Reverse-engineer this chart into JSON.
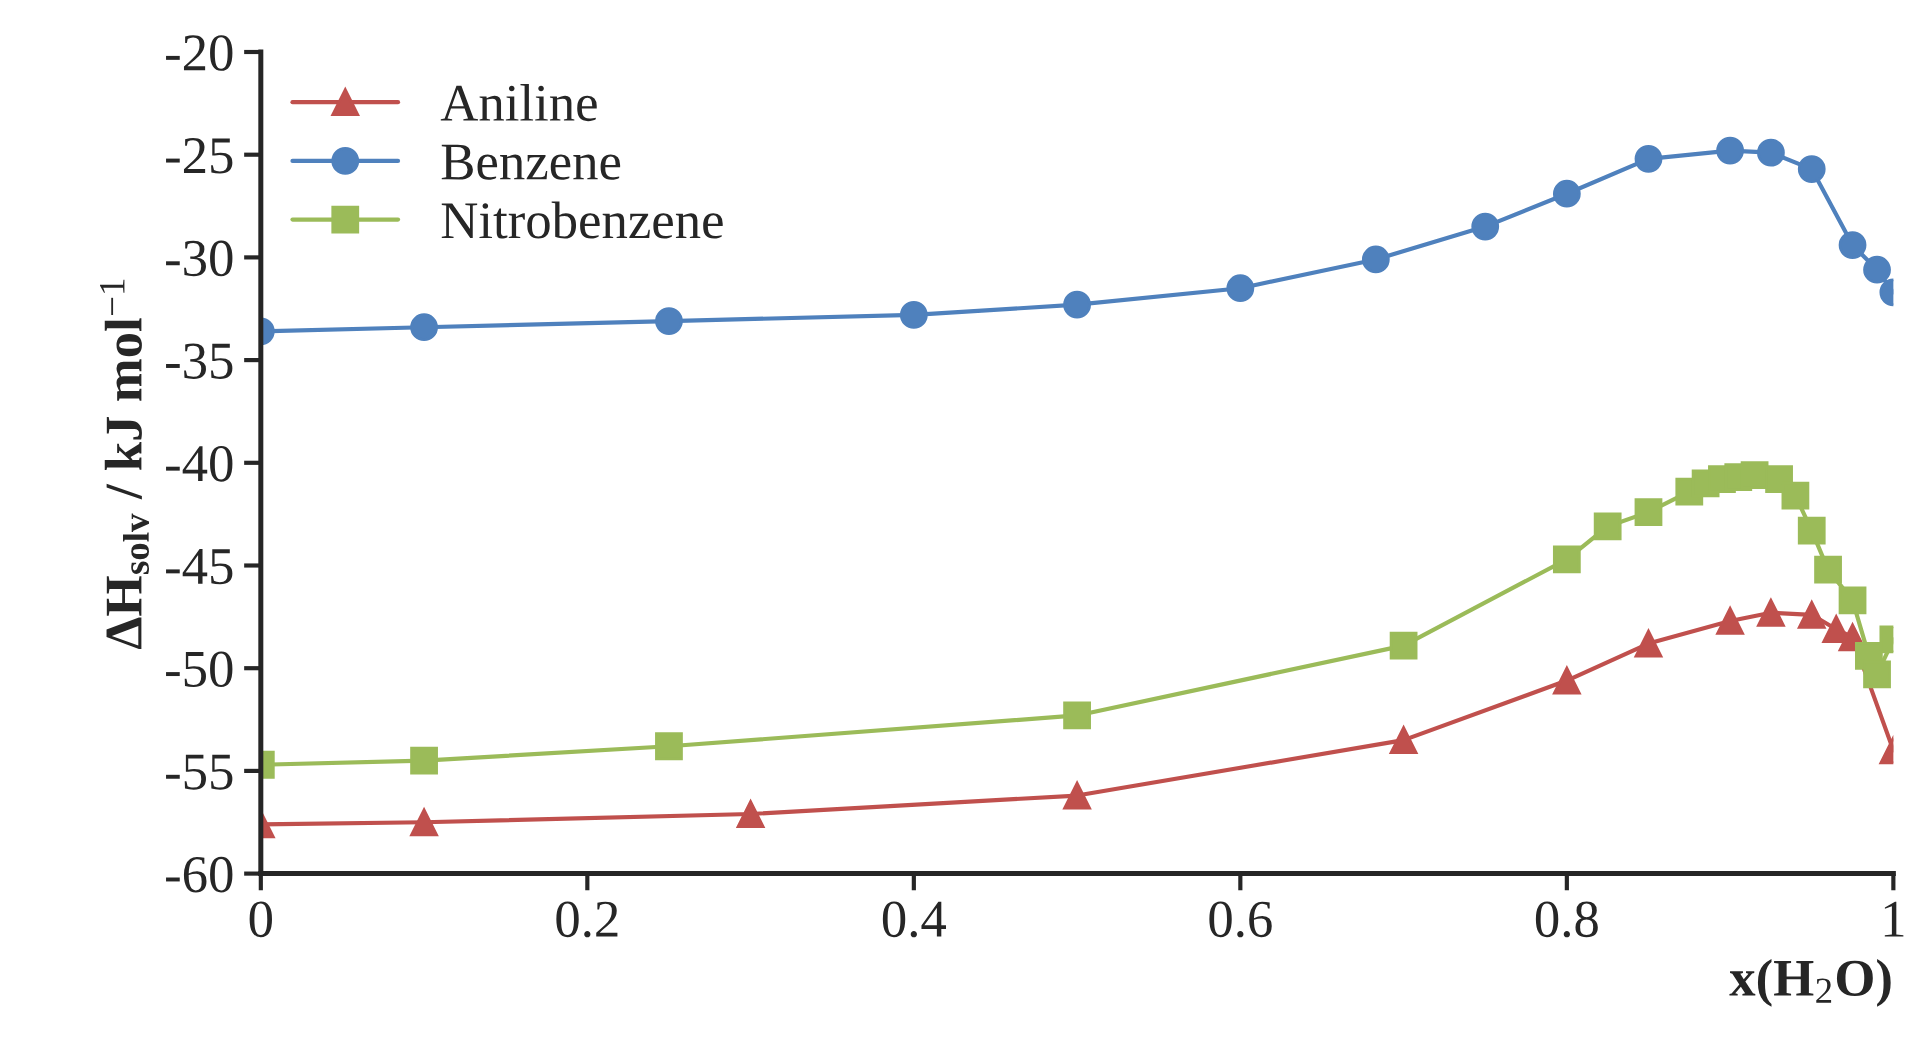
{
  "chart_data": {
    "type": "line",
    "xlabel": "x(H$_{2}$O)",
    "ylabel": "ΔH$_{solv}$ / kJ mol$^{−1}$",
    "xlim": [
      0,
      1
    ],
    "xticks": [
      0,
      0.2,
      0.4,
      0.6,
      0.8,
      1
    ],
    "ylim": [
      -60,
      -20
    ],
    "yticks": [
      -60,
      -55,
      -50,
      -45,
      -40,
      -35,
      -30,
      -25,
      -20
    ],
    "grid": false,
    "legend": "top left",
    "series": [
      {
        "name": "Aniline",
        "color": "#c0504d",
        "marker": "triangle",
        "x": [
          0,
          0.1,
          0.3,
          0.5,
          0.7,
          0.8,
          0.85,
          0.9,
          0.925,
          0.95,
          0.965,
          0.975,
          1.0
        ],
        "values": [
          -57.6,
          -57.5,
          -57.1,
          -56.2,
          -53.5,
          -50.6,
          -48.8,
          -47.7,
          -47.3,
          -47.4,
          -48.1,
          -48.5,
          -54.0
        ]
      },
      {
        "name": "Benzene",
        "color": "#4f81bd",
        "marker": "circle",
        "x": [
          0,
          0.1,
          0.25,
          0.4,
          0.5,
          0.6,
          0.683,
          0.75,
          0.8,
          0.85,
          0.9,
          0.925,
          0.95,
          0.975,
          0.99,
          1.0
        ],
        "values": [
          -33.6,
          -33.4,
          -33.1,
          -32.8,
          -32.3,
          -31.5,
          -30.1,
          -28.5,
          -26.9,
          -25.2,
          -24.8,
          -24.9,
          -25.7,
          -29.4,
          -30.6,
          -31.7
        ]
      },
      {
        "name": "Nitrobenzene",
        "color": "#9bbb59",
        "marker": "square",
        "x": [
          0,
          0.1,
          0.25,
          0.5,
          0.7,
          0.8,
          0.825,
          0.85,
          0.875,
          0.885,
          0.895,
          0.905,
          0.915,
          0.93,
          0.94,
          0.95,
          0.96,
          0.975,
          0.985,
          0.99,
          1.0
        ],
        "values": [
          -54.7,
          -54.5,
          -53.8,
          -52.3,
          -48.9,
          -44.7,
          -43.1,
          -42.4,
          -41.4,
          -41.0,
          -40.8,
          -40.7,
          -40.6,
          -40.8,
          -41.6,
          -43.3,
          -45.2,
          -46.7,
          -49.4,
          -50.3,
          -48.6
        ]
      }
    ]
  }
}
